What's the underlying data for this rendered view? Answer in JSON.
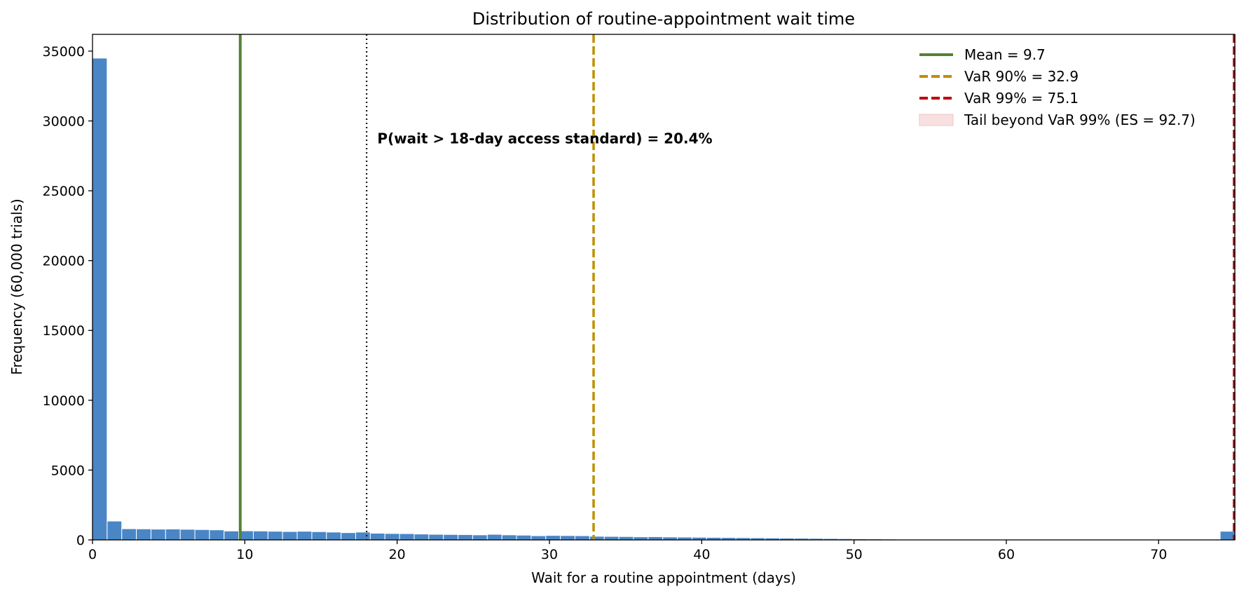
{
  "chart_data": {
    "type": "bar",
    "title": "Distribution of routine-appointment wait time",
    "xlabel": "Wait for a routine appointment (days)",
    "ylabel": "Frequency  (60,000 trials)",
    "xlim": [
      0,
      75
    ],
    "ylim": [
      0,
      36200
    ],
    "xticks": [
      0,
      10,
      20,
      30,
      40,
      50,
      60,
      70
    ],
    "yticks": [
      0,
      5000,
      10000,
      15000,
      20000,
      25000,
      30000,
      35000
    ],
    "grid": false,
    "legend_position": "top-right",
    "bin_width": 0.96,
    "bins_start": [
      0,
      0.96,
      1.92,
      2.88,
      3.84,
      4.8,
      5.76,
      6.72,
      7.68,
      8.64,
      9.6,
      10.56,
      11.52,
      12.48,
      13.44,
      14.4,
      15.36,
      16.32,
      17.28,
      18.24,
      19.2,
      20.16,
      21.12,
      22.08,
      23.04,
      24.0,
      24.96,
      25.92,
      26.88,
      27.84,
      28.8,
      29.76,
      30.72,
      31.68,
      32.64,
      33.6,
      34.56,
      35.52,
      36.48,
      37.44,
      38.4,
      39.36,
      40.32,
      41.28,
      42.24,
      43.2,
      44.16,
      45.12,
      46.08,
      47.04,
      48.0,
      48.96,
      49.92,
      50.88,
      51.84,
      52.8,
      74.04
    ],
    "series": [
      {
        "values": [
          34500,
          1350,
          800,
          790,
          770,
          780,
          760,
          740,
          720,
          640,
          650,
          640,
          620,
          600,
          620,
          590,
          560,
          520,
          560,
          480,
          460,
          450,
          420,
          400,
          390,
          380,
          360,
          400,
          360,
          340,
          300,
          320,
          310,
          300,
          260,
          250,
          240,
          220,
          230,
          210,
          200,
          190,
          180,
          170,
          160,
          150,
          140,
          130,
          120,
          110,
          100,
          90,
          80,
          70,
          60,
          50,
          620
        ],
        "color": "#4a86c6"
      }
    ],
    "reference_lines": [
      {
        "label": "Mean = 9.7",
        "x": 9.7,
        "color": "#548235",
        "style": "solid"
      },
      {
        "label": "VaR 90% = 32.9",
        "x": 32.9,
        "color": "#bf8f00",
        "style": "dashed"
      },
      {
        "label": "VaR 99% = 75.1",
        "x": 75.1,
        "color": "#c00000",
        "style": "dashed"
      },
      {
        "label": "",
        "x": 18,
        "color": "#000000",
        "style": "dotted"
      }
    ],
    "tail_region": {
      "label": "Tail beyond VaR 99% (ES = 92.7)",
      "color": "#f4cccc"
    },
    "annotation": {
      "text": "P(wait > 18-day access standard) = 20.4%",
      "x": 18.7,
      "y": 28400
    }
  }
}
